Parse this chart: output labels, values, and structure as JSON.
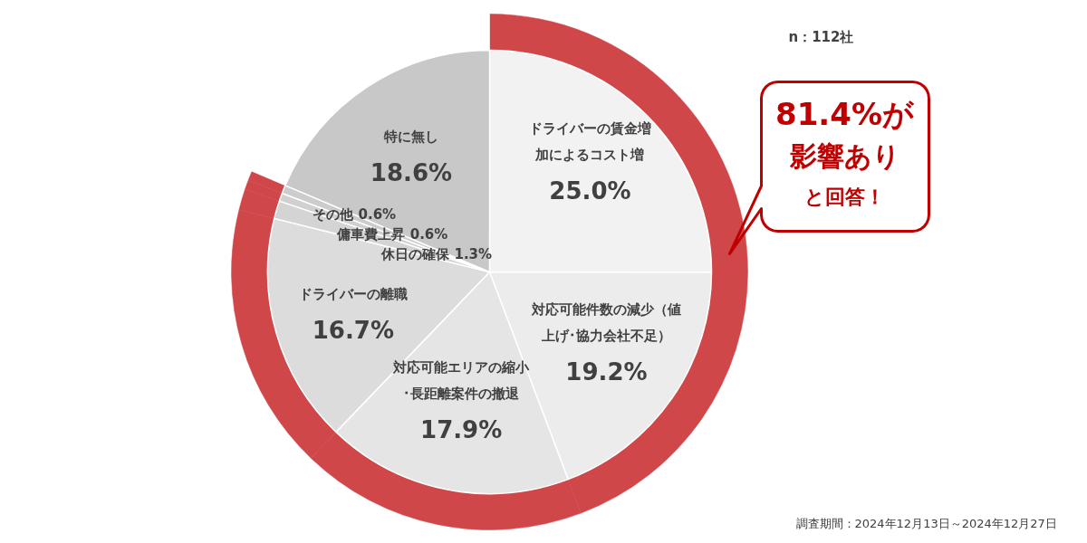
{
  "chart_data": {
    "type": "pie",
    "categories": [
      "ドライバーの賃金増加によるコスト増",
      "対応可能件数の減少（値上げ･協力会社不足）",
      "対応可能エリアの縮小･長距離案件の撤退",
      "ドライバーの離職",
      "休日の確保",
      "傭車費上昇",
      "その他",
      "特に無し"
    ],
    "series": [
      {
        "values": [
          25.0,
          19.2,
          17.9,
          16.7,
          1.3,
          0.6,
          0.6,
          18.6
        ],
        "colors": [
          "#f2f2f2",
          "#ececec",
          "#e5e5e5",
          "#dcdcdc",
          "#d4d4d4",
          "#d0d0d0",
          "#cccccc",
          "#c8c8c8"
        ],
        "value_labels": [
          "25.0%",
          "19.2%",
          "17.9%",
          "16.7%",
          "1.3%",
          "0.6%",
          "0.6%",
          "18.6%"
        ]
      },
      {
        "type": "donut",
        "values": [
          25.0,
          19.2,
          17.9,
          16.7,
          1.3,
          0.6,
          0.6,
          18.6
        ],
        "colors": [
          "#d0474a",
          "#d0474a",
          "#d0474a",
          "#d0474a",
          "#d0474a",
          "#d0474a",
          "#d0474a",
          "#ffffff"
        ]
      }
    ],
    "annotations": [
      "n：112社",
      "81.4%が",
      "影響あり",
      "と回答！",
      "調査期間：2024年12月13日～2024年12月27日"
    ]
  }
}
